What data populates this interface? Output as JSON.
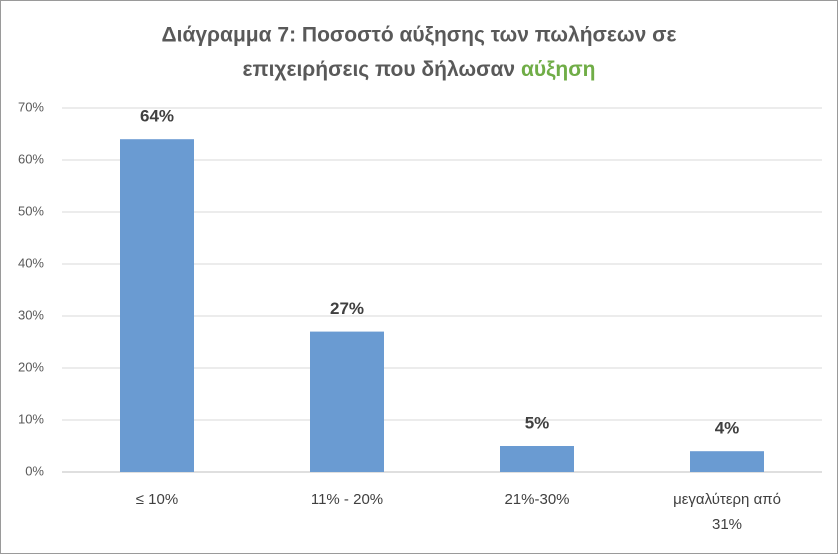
{
  "chart_data": {
    "type": "bar",
    "title": [
      "Διάγραμμα 7: Ποσοστό αύξησης των πωλήσεων σε",
      "επιχειρήσεις που δήλωσαν"
    ],
    "title_highlight": "αύξηση",
    "categories": [
      "≤ 10%",
      "11% - 20%",
      "21%-30%",
      "μεγαλύτερη από 31%"
    ],
    "values": [
      64,
      27,
      5,
      4
    ],
    "value_labels": [
      "64%",
      "27%",
      "5%",
      "4%"
    ],
    "color": "#6a9bd2",
    "ylim": [
      0,
      70
    ],
    "yticks": [
      {
        "value": 0,
        "label": "0%"
      },
      {
        "value": 10,
        "label": "10%"
      },
      {
        "value": 20,
        "label": "20%"
      },
      {
        "value": 30,
        "label": "30%"
      },
      {
        "value": 40,
        "label": "40%"
      },
      {
        "value": 50,
        "label": "50%"
      },
      {
        "value": 60,
        "label": "60%"
      },
      {
        "value": 70,
        "label": "70%"
      }
    ],
    "grid": true
  }
}
